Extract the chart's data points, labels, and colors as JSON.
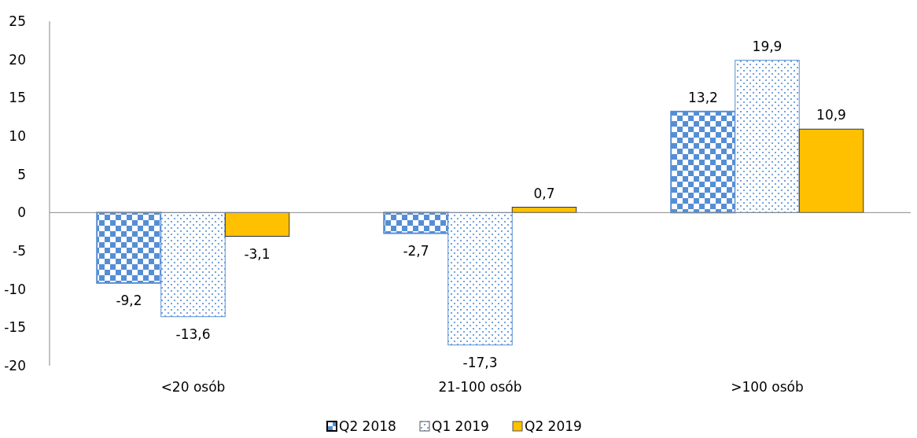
{
  "chart_data": {
    "type": "bar",
    "categories": [
      "<20 osób",
      "21-100 osób",
      ">100 osób"
    ],
    "series": [
      {
        "name": "Q2 2018",
        "color": "#558ed5",
        "values": [
          -9.2,
          -2.7,
          13.2
        ],
        "value_labels": [
          "-9,2",
          "-2,7",
          "13,2"
        ]
      },
      {
        "name": "Q1 2019",
        "color": "#558ed5",
        "values": [
          -13.6,
          -17.3,
          19.9
        ],
        "value_labels": [
          "-13,6",
          "-17,3",
          "19,9"
        ]
      },
      {
        "name": "Q2 2019",
        "color": "#ffc000",
        "values": [
          -3.1,
          0.7,
          10.9
        ],
        "value_labels": [
          "-3,1",
          "0,7",
          "10,9"
        ]
      }
    ],
    "ylim": [
      -20,
      25
    ],
    "yticks": [
      -20,
      -15,
      -10,
      -5,
      0,
      5,
      10,
      15,
      20,
      25
    ],
    "legend": "bottom"
  }
}
